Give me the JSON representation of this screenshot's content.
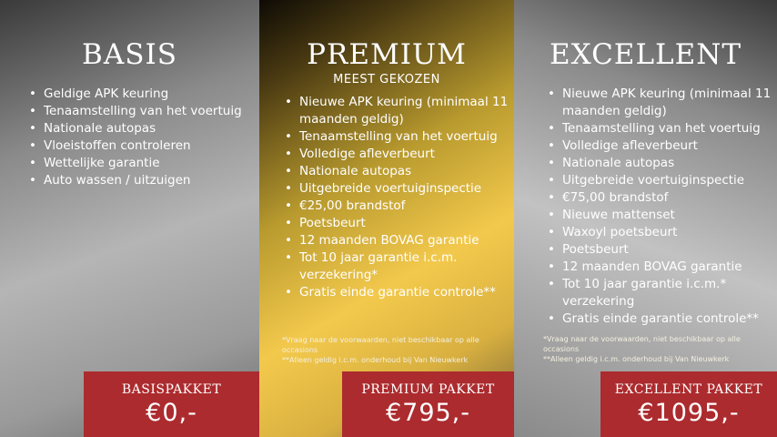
{
  "packages": [
    {
      "title": "BASIS",
      "subtitle": "",
      "features": [
        "Geldige APK keuring",
        "Tenaamstelling van het voertuig",
        "Nationale autopas",
        "Vloeistoffen controleren",
        "Wettelijke garantie",
        "Auto wassen / uitzuigen"
      ],
      "notes": [],
      "price_label": "BASISPAKKET",
      "price": "€0,-"
    },
    {
      "title": "PREMIUM",
      "subtitle": "MEEST GEKOZEN",
      "features": [
        "Nieuwe APK keuring (minimaal 11 maanden geldig)",
        "Tenaamstelling van het voertuig",
        "Volledige afleverbeurt",
        "Nationale autopas",
        "Uitgebreide voertuiginspectie",
        "€25,00 brandstof",
        "Poetsbeurt",
        "12 maanden BOVAG garantie",
        "Tot 10 jaar garantie i.c.m. verzekering*",
        "Gratis einde garantie controle**"
      ],
      "notes": [
        "*Vraag naar de voorwaarden, niet beschikbaar op alle occasions",
        "**Alleen geldig i.c.m. onderhoud bij Van Nieuwkerk"
      ],
      "price_label": "PREMIUM PAKKET",
      "price": "€795,-"
    },
    {
      "title": "EXCELLENT",
      "subtitle": "",
      "features": [
        "Nieuwe APK keuring (minimaal 11 maanden geldig)",
        "Tenaamstelling van het voertuig",
        "Volledige afleverbeurt",
        "Nationale autopas",
        "Uitgebreide voertuiginspectie",
        "€75,00 brandstof",
        "Nieuwe mattenset",
        "Waxoyl poetsbeurt",
        "Poetsbeurt",
        "12 maanden BOVAG garantie",
        "Tot 10 jaar garantie i.c.m.* verzekering",
        "Gratis einde garantie controle**"
      ],
      "notes": [
        "*Vraag naar de voorwaarden, niet beschikbaar op alle occasions",
        "**Alleen geldig i.c.m. onderhoud bij Van Nieuwkerk"
      ],
      "price_label": "EXCELLENT PAKKET",
      "price": "€1095,-"
    }
  ],
  "colors": {
    "price_box": "#ac2b2e",
    "gold": "#f3c94c"
  }
}
